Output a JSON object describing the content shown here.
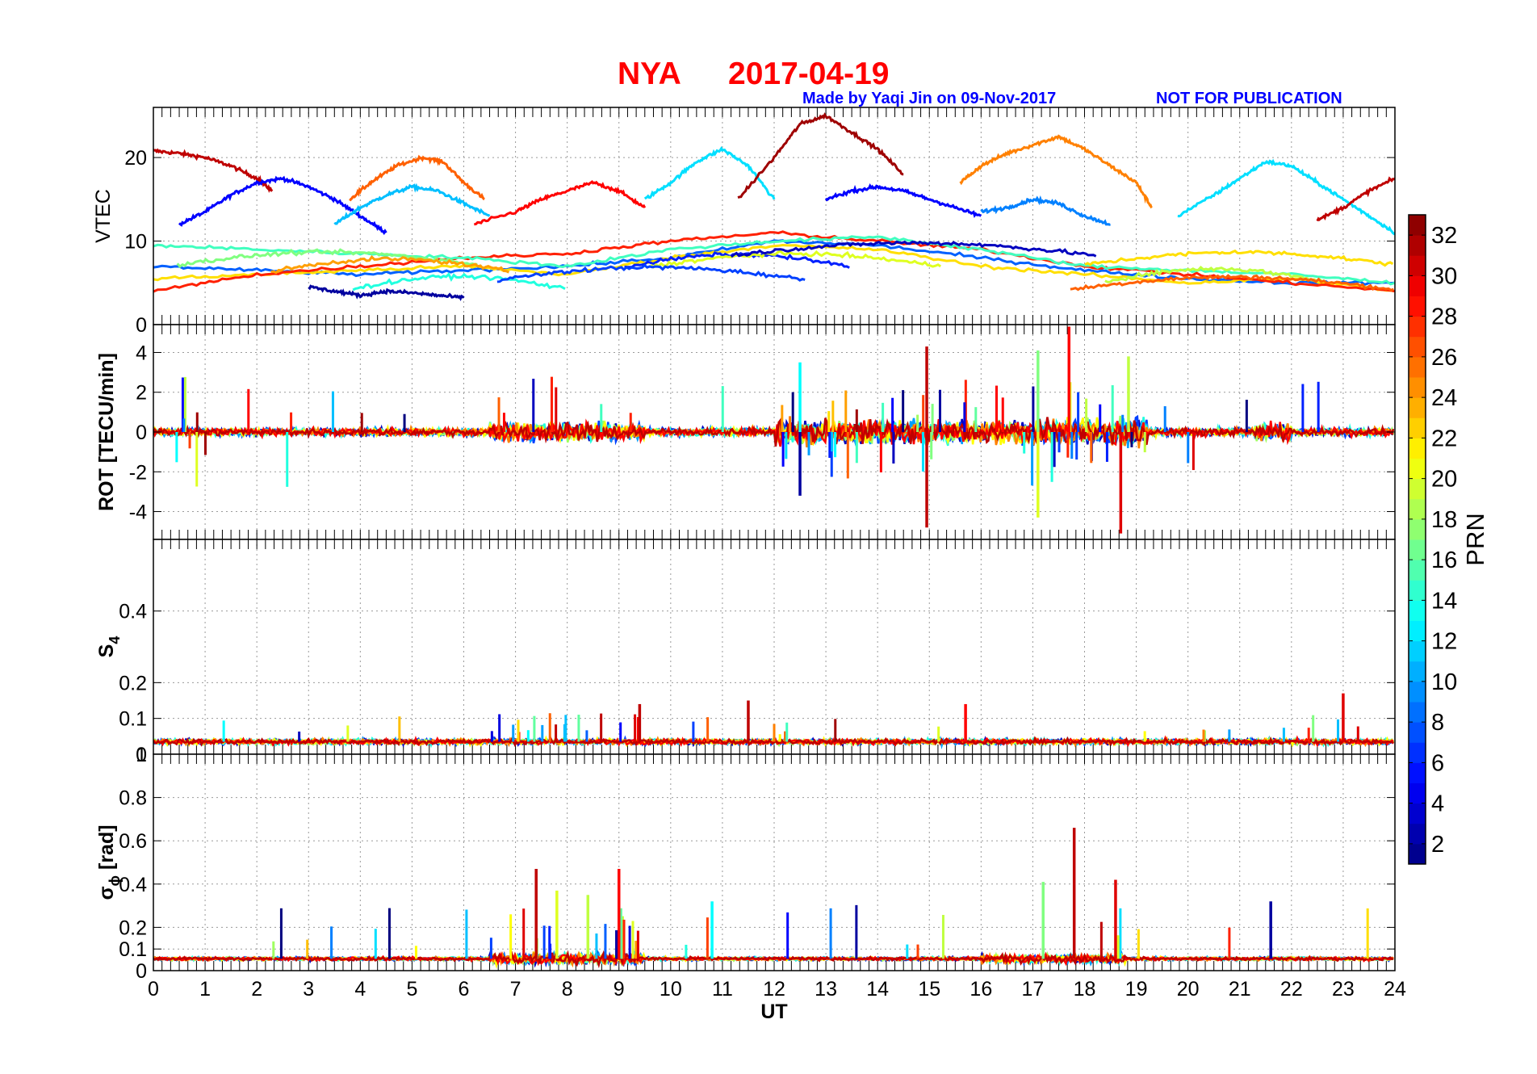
{
  "figure": {
    "station": "NYA",
    "date": "2017-04-19",
    "credit": "Made by Yaqi Jin on 09-Nov-2017",
    "notice": "NOT FOR PUBLICATION",
    "title_color": "#ff0000",
    "credit_color": "#0000ff"
  },
  "chart_data": [
    {
      "type": "line",
      "panel": "VTEC",
      "ylabel": "VTEC",
      "ylim": [
        0,
        26
      ],
      "yticks": [
        "0",
        "10",
        "20"
      ],
      "xlim": [
        0,
        24
      ],
      "grid": true,
      "series_summary": [
        {
          "prn": 31,
          "x": [
            0,
            0.5,
            1,
            1.5,
            2,
            2.3
          ],
          "y": [
            20.8,
            20.5,
            20,
            19,
            17.5,
            16
          ]
        },
        {
          "prn": 5,
          "x": [
            0.5,
            1,
            1.5,
            2,
            2.5,
            3,
            3.5,
            4,
            4.5
          ],
          "y": [
            12,
            13.5,
            15.5,
            17,
            17.5,
            16.5,
            15,
            13,
            11
          ]
        },
        {
          "prn": 26,
          "x": [
            3.8,
            4.2,
            4.7,
            5.2,
            5.6,
            6,
            6.4
          ],
          "y": [
            15,
            17,
            19,
            20,
            19.5,
            17,
            15
          ]
        },
        {
          "prn": 11,
          "x": [
            3.5,
            4,
            4.5,
            5,
            5.5,
            6,
            6.5
          ],
          "y": [
            12,
            14,
            15.5,
            16.5,
            16,
            14.5,
            13
          ]
        },
        {
          "prn": 29,
          "x": [
            6.2,
            7,
            7.5,
            8,
            8.5,
            9,
            9.5
          ],
          "y": [
            12,
            13.5,
            15,
            16,
            17,
            16,
            14
          ]
        },
        {
          "prn": 12,
          "x": [
            9.5,
            10,
            10.5,
            11,
            11.5,
            12
          ],
          "y": [
            15,
            17,
            19.5,
            21,
            19,
            15
          ]
        },
        {
          "prn": 32,
          "x": [
            11.3,
            12,
            12.5,
            13,
            13.5,
            14,
            14.5
          ],
          "y": [
            15,
            20,
            24,
            25,
            23,
            21,
            18
          ]
        },
        {
          "prn": 25,
          "x": [
            15.6,
            16,
            16.5,
            17,
            17.5,
            18,
            18.5,
            19,
            19.3
          ],
          "y": [
            17,
            19,
            20.5,
            21.5,
            22.5,
            21,
            19,
            17,
            14
          ]
        },
        {
          "prn": 12,
          "x": [
            19.8,
            20.5,
            21,
            21.5,
            22,
            22.5,
            23,
            23.5,
            24
          ],
          "y": [
            13,
            15.5,
            17.5,
            19.5,
            19,
            17,
            15,
            13,
            11
          ]
        },
        {
          "prn": 31,
          "x": [
            22.5,
            23,
            23.5,
            24
          ],
          "y": [
            12.5,
            14,
            16,
            17.5
          ]
        },
        {
          "prn": 5,
          "x": [
            13,
            13.5,
            14,
            14.5,
            15,
            15.5,
            16
          ],
          "y": [
            15,
            16,
            16.5,
            16,
            15,
            14,
            13
          ]
        },
        {
          "prn": 9,
          "x": [
            16,
            16.5,
            17,
            17.5,
            18,
            18.5
          ],
          "y": [
            13.5,
            14,
            15,
            14.5,
            13,
            12
          ]
        },
        {
          "prn": 2,
          "x": [
            3,
            3.5,
            4,
            4.5,
            5,
            5.5,
            6
          ],
          "y": [
            4.5,
            4,
            3.5,
            4,
            3.8,
            3.5,
            3.2
          ]
        },
        {
          "prn": 8,
          "x": [
            0,
            2,
            4,
            6,
            8,
            10,
            12,
            14,
            16,
            18,
            20,
            22,
            24
          ],
          "y": [
            7,
            6.5,
            6,
            6.5,
            7,
            8,
            10,
            9.5,
            8,
            6.5,
            5.5,
            5,
            5
          ]
        },
        {
          "prn": 22,
          "x": [
            0,
            2,
            4,
            6,
            8,
            10,
            12,
            14,
            16,
            18,
            20,
            22,
            24
          ],
          "y": [
            5.5,
            6,
            6.5,
            7,
            6,
            8,
            9.5,
            9,
            7,
            6,
            5,
            5.5,
            4
          ]
        },
        {
          "prn": 28,
          "x": [
            0,
            2,
            4,
            6,
            8,
            10,
            12,
            14,
            16,
            18,
            20,
            22,
            24
          ],
          "y": [
            4,
            6,
            7,
            8,
            8.5,
            10,
            11,
            10,
            9,
            7,
            6,
            5,
            4
          ]
        },
        {
          "prn": 15,
          "x": [
            0,
            2,
            4,
            6,
            8,
            10,
            12,
            14,
            16,
            18,
            20,
            22,
            24
          ],
          "y": [
            9.5,
            9,
            8.5,
            8,
            7,
            9,
            10,
            10.5,
            9,
            7,
            6.5,
            6,
            5
          ]
        }
      ]
    },
    {
      "type": "line",
      "panel": "ROT",
      "ylabel": "ROT [TECU/min]",
      "ylim": [
        -5.4,
        5.4
      ],
      "yticks": [
        "-4",
        "-2",
        "0",
        "2",
        "4"
      ],
      "xlim": [
        0,
        24
      ],
      "grid": true,
      "notable_spikes": [
        {
          "x": 14.95,
          "y": 4.3
        },
        {
          "x": 14.95,
          "y": -4.8
        },
        {
          "x": 17.7,
          "y": 5.3
        },
        {
          "x": 18.7,
          "y": -5.1
        },
        {
          "x": 17.1,
          "y": 4.1
        },
        {
          "x": 17.1,
          "y": -4.3
        },
        {
          "x": 18.85,
          "y": 3.8
        },
        {
          "x": 12.5,
          "y": 3.5
        },
        {
          "x": 12.5,
          "y": -3.2
        }
      ]
    },
    {
      "type": "line",
      "panel": "S4",
      "ylabel": "S",
      "ylabel_sub": "4",
      "ylim": [
        0,
        0.6
      ],
      "yticks": [
        "0",
        "0.1",
        "0.2",
        "0.4"
      ],
      "overlap_tick": "1",
      "xlim": [
        0,
        24
      ],
      "grid": true,
      "notable_spikes": [
        {
          "x": 9.4,
          "y": 0.14
        },
        {
          "x": 11.5,
          "y": 0.15
        },
        {
          "x": 15.7,
          "y": 0.14
        },
        {
          "x": 23.0,
          "y": 0.17
        }
      ]
    },
    {
      "type": "line",
      "panel": "sigma_phi",
      "ylabel": "σ",
      "ylabel_sub": "ϕ",
      "ylabel_rest": " [rad]",
      "ylim": [
        0,
        1
      ],
      "yticks": [
        "0",
        "0.1",
        "0.2",
        "0.4",
        "0.6",
        "0.8"
      ],
      "xlim": [
        0,
        24
      ],
      "xlabel": "UT",
      "xticks": [
        "0",
        "1",
        "2",
        "3",
        "4",
        "5",
        "6",
        "7",
        "8",
        "9",
        "10",
        "11",
        "12",
        "13",
        "14",
        "15",
        "16",
        "17",
        "18",
        "19",
        "20",
        "21",
        "22",
        "23",
        "24"
      ],
      "grid": true,
      "notable_spikes": [
        {
          "x": 17.8,
          "y": 0.66
        },
        {
          "x": 7.4,
          "y": 0.47
        },
        {
          "x": 9.0,
          "y": 0.47
        },
        {
          "x": 18.6,
          "y": 0.42
        },
        {
          "x": 17.2,
          "y": 0.41
        },
        {
          "x": 7.8,
          "y": 0.37
        },
        {
          "x": 8.4,
          "y": 0.35
        },
        {
          "x": 10.8,
          "y": 0.32
        },
        {
          "x": 21.6,
          "y": 0.32
        }
      ]
    }
  ],
  "colorbar": {
    "label": "PRN",
    "range": [
      1,
      33
    ],
    "ticks": [
      "2",
      "4",
      "6",
      "8",
      "10",
      "12",
      "14",
      "16",
      "18",
      "20",
      "22",
      "24",
      "26",
      "28",
      "30",
      "32"
    ]
  }
}
